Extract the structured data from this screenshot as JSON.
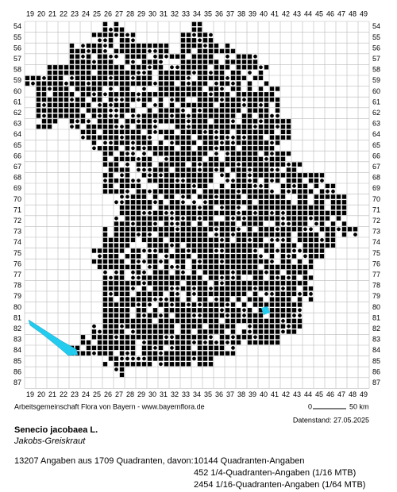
{
  "map": {
    "columns": [
      19,
      20,
      21,
      22,
      23,
      24,
      25,
      26,
      27,
      28,
      29,
      30,
      31,
      32,
      33,
      34,
      35,
      36,
      37,
      38,
      39,
      40,
      41,
      42,
      43,
      44,
      45,
      46,
      47,
      48,
      49
    ],
    "rows": [
      54,
      55,
      56,
      57,
      58,
      59,
      60,
      61,
      62,
      63,
      64,
      65,
      66,
      67,
      68,
      69,
      70,
      71,
      72,
      73,
      74,
      75,
      76,
      77,
      78,
      79,
      80,
      81,
      82,
      83,
      84,
      85,
      86,
      87
    ]
  },
  "footer": {
    "credit": "Arbeitsgemeinschaft Flora von Bayern - www.bayernflora.de",
    "scale_start": "0",
    "scale_end": "50 km",
    "date": "Datenstand: 27.05.2025"
  },
  "species": {
    "name": "Senecio jacobaea L.",
    "common_name": "Jakobs-Greiskraut"
  },
  "stats": {
    "summary": "13207 Angaben aus 1709 Quadranten, davon:",
    "lines": [
      "10144 Quadranten-Angaben",
      "452 1/4-Quadranten-Angaben (1/16 MTB)",
      "2454 1/16-Quadranten-Angaben (1/64 MTB)"
    ]
  }
}
